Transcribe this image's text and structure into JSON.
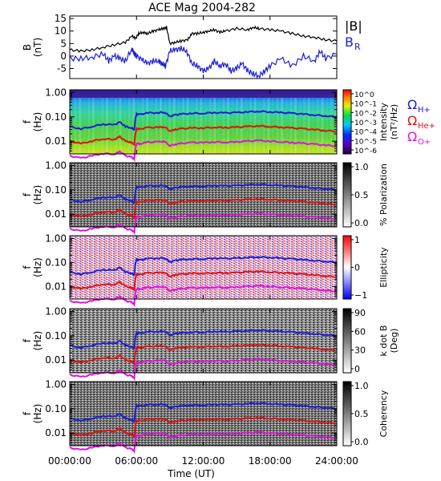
{
  "chart_data": [
    {
      "type": "line",
      "title": "ACE Mag 2004-282",
      "ylabel": "B\n(nT)",
      "yticks": [
        "15",
        "10",
        "5",
        "0",
        "-5"
      ],
      "ylim": [
        -9,
        16
      ],
      "legend": [
        {
          "label": "|B|",
          "color": "#000000"
        },
        {
          "label": "B_R",
          "color": "#1c1cd6"
        }
      ],
      "series": [
        {
          "name": "|B|",
          "color": "#000000",
          "x": [
            0,
            1,
            2,
            3,
            4,
            5,
            5.6,
            5.9,
            6.2,
            6.6,
            7,
            7.5,
            8,
            8.4,
            8.7,
            9,
            9.5,
            10,
            10.6,
            11,
            11.5,
            12,
            12.5,
            13,
            13.5,
            14,
            15,
            16,
            16.5,
            17,
            18,
            19,
            20,
            21,
            22,
            23,
            24
          ],
          "values": [
            2.5,
            2,
            2.5,
            3.5,
            4.5,
            5.5,
            8,
            7,
            9,
            9.5,
            9,
            10,
            10.5,
            11,
            11.5,
            5,
            5.5,
            6,
            6.5,
            9,
            9,
            9.5,
            10,
            10.5,
            9.5,
            10,
            11,
            10.5,
            11.5,
            11,
            10.5,
            10,
            9,
            8,
            7.5,
            6.5,
            6
          ]
        },
        {
          "name": "B_R",
          "color": "#1c1cd6",
          "x": [
            0,
            1,
            2,
            3,
            3.5,
            4,
            4.5,
            5,
            5.6,
            5.8,
            6,
            6.5,
            7,
            7.5,
            8,
            8.3,
            8.6,
            9,
            9.5,
            10,
            10.5,
            11,
            11.5,
            12,
            12.5,
            13,
            13.5,
            14,
            14.5,
            15,
            15.5,
            16,
            16.5,
            17,
            17.5,
            18,
            19,
            20,
            21,
            22,
            22.5,
            23,
            24
          ],
          "values": [
            -1,
            -1,
            -0.5,
            1,
            -2,
            0,
            -1,
            -2,
            3,
            1,
            0,
            -1.5,
            -3,
            -2,
            -2,
            -3,
            -4,
            2,
            2.5,
            3,
            2,
            -3,
            -4,
            -6,
            -5,
            -2,
            -4,
            -3,
            -6,
            -5,
            -3,
            -6,
            -7,
            -8,
            -6,
            -4,
            -1,
            -4,
            0,
            -2,
            2,
            -1,
            1
          ]
        }
      ]
    },
    {
      "type": "heatmap",
      "ylabel": "f\n(Hz)",
      "yticks": [
        "1.00",
        "0.10",
        "0.01"
      ],
      "yscale": "log",
      "ylim": [
        0.003,
        1.3
      ],
      "colorbar": {
        "label": "Intensity\n(nT²/Hz)",
        "ticks": [
          "10^0",
          "10^-1",
          "10^-2",
          "10^-3",
          "10^-4",
          "10^-5",
          "10^-6"
        ],
        "colormap": "rainbow"
      },
      "lines": [
        {
          "label": "Ω_H+",
          "color": "#1c1cd6"
        },
        {
          "label": "Ω_He+",
          "color": "#e01010"
        },
        {
          "label": "Ω_O+",
          "color": "#e010e0"
        }
      ]
    },
    {
      "type": "heatmap",
      "ylabel": "f\n(Hz)",
      "yticks": [
        "1.00",
        "0.10",
        "0.01"
      ],
      "yscale": "log",
      "ylim": [
        0.003,
        1.3
      ],
      "colorbar": {
        "label": "% Polarization",
        "ticks": [
          "1.0",
          "0.5",
          "0.0"
        ],
        "colormap": "gray"
      }
    },
    {
      "type": "heatmap",
      "ylabel": "f\n(Hz)",
      "yticks": [
        "1.00",
        "0.10",
        "0.01"
      ],
      "yscale": "log",
      "ylim": [
        0.003,
        1.3
      ],
      "colorbar": {
        "label": "Ellipticity",
        "ticks": [
          "1",
          "0",
          "−1"
        ],
        "colormap": "blue-white-red"
      }
    },
    {
      "type": "heatmap",
      "ylabel": "f\n(Hz)",
      "yticks": [
        "1.00",
        "0.10",
        "0.01"
      ],
      "yscale": "log",
      "ylim": [
        0.003,
        1.3
      ],
      "colorbar": {
        "label": "k dot B\n(Deg)",
        "ticks": [
          "90",
          "60",
          "30",
          "0"
        ],
        "colormap": "gray"
      }
    },
    {
      "type": "heatmap",
      "ylabel": "f\n(Hz)",
      "yticks": [
        "1.00",
        "0.10",
        "0.01"
      ],
      "yscale": "log",
      "ylim": [
        0.003,
        1.3
      ],
      "colorbar": {
        "label": "Coherency",
        "ticks": [
          "1.0",
          "0.5",
          "0.0"
        ],
        "colormap": "gray"
      }
    }
  ],
  "gyrofrequency_hz": {
    "x": [
      0,
      1,
      2,
      3,
      4,
      4.5,
      5,
      5.5,
      5.8,
      6,
      6.3,
      7,
      8,
      8.5,
      9,
      9.5,
      10,
      11,
      12,
      13,
      14,
      15,
      16,
      17,
      18,
      19,
      20,
      21,
      22,
      23,
      24
    ],
    "H+": [
      0.04,
      0.032,
      0.04,
      0.05,
      0.047,
      0.06,
      0.04,
      0.036,
      0.03,
      0.13,
      0.125,
      0.145,
      0.15,
      0.155,
      0.105,
      0.12,
      0.13,
      0.14,
      0.14,
      0.15,
      0.145,
      0.15,
      0.16,
      0.17,
      0.16,
      0.15,
      0.14,
      0.13,
      0.12,
      0.11,
      0.1
    ]
  },
  "xaxis": {
    "ticks": [
      "00:00:00",
      "06:00:00",
      "12:00:00",
      "18:00:00",
      "24:00:00"
    ],
    "tick_hours": [
      0,
      6,
      12,
      18,
      24
    ],
    "label": "Time (UT)",
    "xlim": [
      0,
      24
    ]
  }
}
